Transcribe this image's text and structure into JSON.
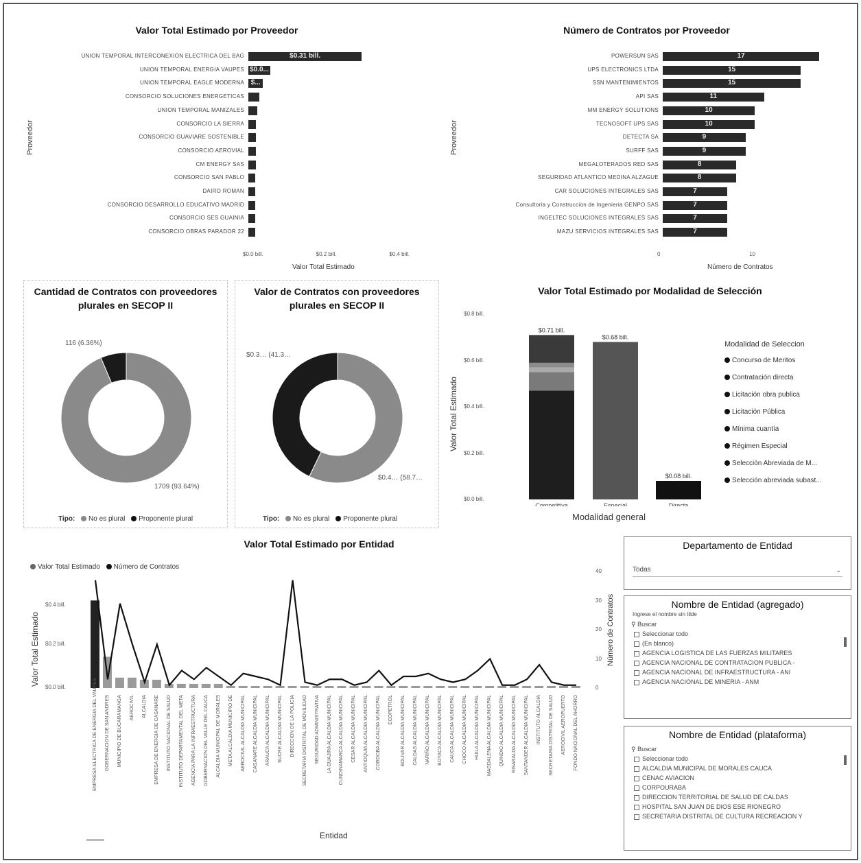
{
  "colors": {
    "bar": "#2a2a2a",
    "mid": "#6a6a6a",
    "light": "#9a9a9a",
    "text": "#222222"
  },
  "top_left": {
    "title": "Valor Total Estimado por Proveedor",
    "ylabel": "Proveedor",
    "xlabel": "Valor Total Estimado",
    "ticks": [
      "$0.0 bill.",
      "$0.2 bill.",
      "$0.4 bill."
    ]
  },
  "top_right": {
    "title": "Número de Contratos por Proveedor",
    "ylabel": "Proveedor",
    "xlabel": "Número de Contratos",
    "ticks": [
      "0",
      "10"
    ]
  },
  "donut1": {
    "title_line1": "Cantidad de Contratos con proveedores",
    "title_line2": "plurales en SECOP II",
    "label_small": "116 (6.36%)",
    "label_big": "1709 (93.64%)",
    "legend_title": "Tipo:",
    "legend_items": [
      "No es plural",
      "Proponente plural"
    ]
  },
  "donut2": {
    "title_line1": "Valor de Contratos con proveedores",
    "title_line2": "plurales en SECOP II",
    "label_left": "$0.3… (41.3…",
    "label_right": "$0.4… (58.7…",
    "legend_title": "Tipo:",
    "legend_items": [
      "No es plural",
      "Proponente plural"
    ]
  },
  "modalidad": {
    "title": "Valor Total Estimado por Modalidad de Selección",
    "ylabel": "Valor Total Estimado",
    "xlabel": "Modalidad general",
    "yticks": [
      "$0.8 bill.",
      "$0.6 bill.",
      "$0.4 bill.",
      "$0.2 bill.",
      "$0.0 bill."
    ],
    "legend_title": "Modalidad de Seleccion",
    "legend_items": [
      "Concurso de Meritos",
      "Contratación directa",
      "Licitación obra publica",
      "Licitación Pública",
      "Mínima cuantía",
      "Régimen Especial",
      "Selección Abreviada de M...",
      "Selección abreviada subast..."
    ]
  },
  "entidad": {
    "title": "Valor Total Estimado por Entidad",
    "legend": [
      "Valor Total Estimado",
      "Número de Contratos"
    ],
    "ylabel": "Valor Total Estimado",
    "y2label": "Número de Contratos",
    "xlabel": "Entidad",
    "yticks": [
      "$0.4 bill.",
      "$0.2 bill.",
      "$0.0 bill."
    ],
    "y2ticks": [
      "40",
      "30",
      "20",
      "10",
      "0"
    ]
  },
  "slicer_depto": {
    "title": "Departamento de Entidad",
    "value": "Todas"
  },
  "slicer_nombre_agr": {
    "title": "Nombre de Entidad (agregado)",
    "hint": "Ingrese el nombre sin tilde",
    "search": "Buscar",
    "items": [
      "Seleccionar todo",
      "(En blanco)",
      "AGENCIA LOGISTICA DE LAS FUERZAS MILITARES",
      "AGENCIA NACIONAL DE CONTRATACION PUBLICA -",
      "AGENCIA NACIONAL DE INFRAESTRUCTURA - ANI",
      "AGENCIA NACIONAL DE MINERIA - ANM"
    ]
  },
  "slicer_nombre_plat": {
    "title": "Nombre de Entidad (plataforma)",
    "search": "Buscar",
    "items": [
      "Seleccionar todo",
      "ALCALDIA MUNICIPAL DE MORALES CAUCA",
      "CENAC AVIACION",
      "CORPOURABA",
      "DIRECCION TERRITORIAL DE SALUD DE CALDAS",
      "HOSPITAL SAN JUAN DE DIOS ESE RIONEGRO",
      "SECRETARIA DISTRITAL DE CULTURA RECREACION Y"
    ]
  },
  "chart_data": [
    {
      "type": "bar",
      "title": "Valor Total Estimado por Proveedor",
      "xlabel": "Valor Total Estimado",
      "ylabel": "Proveedor",
      "categories": [
        "UNION TEMPORAL INTERCONEXION ELECTRICA DEL BAG",
        "UNION TEMPORAL ENERGIA VAUPES",
        "UNION TEMPORAL EAGLE MODERNA",
        "CONSORCIO SOLUCIONES ENERGETICAS",
        "UNION TEMPORAL MANIZALES",
        "CONSORCIO LA SIERRA",
        "CONSORCIO GUAVIARE SOSTENIBLE",
        "CONSORCIO AEROVIAL",
        "CM ENERGY SAS",
        "CONSORCIO SAN PABLO",
        "DAIRO ROMAN",
        "CONSORCIO DESARROLLO EDUCATIVO MADRID",
        "CONSORCIO SES GUAINIA",
        "CONSORCIO OBRAS PARADOR 22"
      ],
      "values": [
        0.31,
        0.06,
        0.04,
        0.03,
        0.025,
        0.02,
        0.02,
        0.02,
        0.02,
        0.018,
        0.018,
        0.017,
        0.017,
        0.017
      ],
      "value_labels": [
        "$0.31 bill.",
        "$0.0...",
        "$...",
        "",
        "",
        "",
        "",
        "",
        "",
        "",
        "",
        "",
        "",
        ""
      ],
      "xlim": [
        0,
        0.45
      ]
    },
    {
      "type": "bar",
      "title": "Número de Contratos por Proveedor",
      "xlabel": "Número de Contratos",
      "ylabel": "Proveedor",
      "categories": [
        "POWERSUN SAS",
        "UPS ELECTRONICS LTDA",
        "SSN MANTENIMIENTOS",
        "API SAS",
        "MM ENERGY SOLUTIONS",
        "TECNOSOFT UPS SAS",
        "DETECTA SA",
        "SURFF SAS",
        "MEGALOTERADOS RED SAS",
        "SEGURIDAD ATLANTICO MEDINA ALZAGUE",
        "CAR SOLUCIONES INTEGRALES SAS",
        "Consultoria y Construccion de Ingenieria GENPO SAS",
        "INGELTEC SOLUCIONES INTEGRALES SAS",
        "MAZU SERVICIOS INTEGRALES SAS"
      ],
      "values": [
        17,
        15,
        15,
        11,
        10,
        10,
        9,
        9,
        8,
        8,
        7,
        7,
        7,
        7
      ],
      "xlim": [
        0,
        19
      ]
    },
    {
      "type": "pie",
      "title": "Cantidad de Contratos con proveedores plurales en SECOP II",
      "categories": [
        "No es plural",
        "Proponente plural"
      ],
      "values": [
        1709,
        116
      ],
      "percent": [
        93.64,
        6.36
      ]
    },
    {
      "type": "pie",
      "title": "Valor de Contratos con proveedores plurales en SECOP II",
      "categories": [
        "No es plural",
        "Proponente plural"
      ],
      "values": [
        0.4,
        0.3
      ],
      "percent": [
        58.7,
        41.3
      ]
    },
    {
      "type": "bar",
      "title": "Valor Total Estimado por Modalidad de Selección",
      "xlabel": "Modalidad general",
      "ylabel": "Valor Total Estimado",
      "categories": [
        "Competitiva",
        "Especial",
        "Directa"
      ],
      "totals": [
        0.71,
        0.68,
        0.08
      ],
      "total_labels": [
        "$0.71 bill.",
        "$0.68 bill.",
        "$0.08 bill."
      ],
      "series": [
        {
          "name": "Licitación Pública",
          "values": [
            0.47,
            0,
            0
          ]
        },
        {
          "name": "Licitación obra publica",
          "values": [
            0.08,
            0,
            0
          ]
        },
        {
          "name": "Mínima cuantía",
          "values": [
            0.02,
            0,
            0
          ]
        },
        {
          "name": "Selección Abreviada de M...",
          "values": [
            0.02,
            0,
            0
          ]
        },
        {
          "name": "Concurso de Meritos",
          "values": [
            0.12,
            0,
            0
          ]
        },
        {
          "name": "Régimen Especial",
          "values": [
            0,
            0.68,
            0
          ]
        },
        {
          "name": "Contratación directa",
          "values": [
            0,
            0,
            0.08
          ]
        }
      ],
      "ylim": [
        0,
        0.8
      ]
    },
    {
      "type": "bar",
      "title": "Valor Total Estimado por Entidad",
      "xlabel": "Entidad",
      "ylabel": "Valor Total Estimado",
      "y2label": "Número de Contratos",
      "categories": [
        "EMPRESA ELECTRICA DE ENERGIA DEL VAUPES",
        "GOBERNACION DE SAN ANDRES",
        "MUNICIPIO DE BUCARAMANGA",
        "AEROCIVIL",
        "ALCALDIA",
        "EMPRESA DE ENERGIA DE CASANARE",
        "INSTITUTO NACIONAL DE SALUD",
        "INSTITUTO DEPARTAMENTAL DEL META",
        "AGENCIA PARA LA INFRAESTRUCTURA",
        "GOBERNACION DEL VALLE DEL CAUCA",
        "ALCALDIA MUNICIPAL DE MORALES",
        "META ALCALDIA MUNICIPIO DE",
        "AEROCIVIL ALCALDIA MUNICIPAL",
        "CASANARE ALCALDIA MUNICIPAL",
        "ARAUCA ALCALDIA MUNICIPAL",
        "SUCRE ALCALDIA MUNICIPAL",
        "DIRECCION DE LA POLICIA",
        "SECRETARIA DISTRITAL DE MOVILIDAD",
        "SEGURIDAD ADMINISTRATIVA",
        "LA GUAJIRA ALCALDIA MUNICIPAL",
        "CUNDINAMARCA ALCALDIA MUNICIPAL",
        "CESAR ALCALDIA MUNICIPAL",
        "ANTIOQUIA ALCALDIA MUNICIPAL",
        "CORDOBA ALCALDIA MUNICIPAL",
        "ECOPETROL",
        "BOLIVAR ALCALDIA MUNICIPAL",
        "CALDAS ALCALDIA MUNICIPAL",
        "NARIÑO ALCALDIA MUNICIPAL",
        "BOYACA ALCALDIA MUNICIPAL",
        "CAUCA ALCALDIA MUNICIPAL",
        "CHOCO ALCALDIA MUNICIPAL",
        "HUILA ALCALDIA MUNICIPAL",
        "MAGDALENA ALCALDIA MUNICIPAL",
        "QUINDIO ALCALDIA MUNICIPAL",
        "RISARALDA ALCALDIA MUNICIPAL",
        "SANTANDER ALCALDIA MUNICIPAL",
        "INSTITUTO ALCALDIA",
        "SECRETARIA DISTRITAL DE SALUD",
        "AEROCIVIL AEROPUERTO",
        "FONDO NACIONAL DEL AHORRO"
      ],
      "series": [
        {
          "name": "Valor Total Estimado",
          "values": [
            0.42,
            0.15,
            0.05,
            0.05,
            0.04,
            0.04,
            0.02,
            0.02,
            0.02,
            0.02,
            0.02,
            0.01,
            0.01,
            0.01,
            0.01,
            0.01,
            0.01,
            0.01,
            0.01,
            0.01,
            0.01,
            0.01,
            0.01,
            0.01,
            0.01,
            0.01,
            0.01,
            0.01,
            0.01,
            0.01,
            0.01,
            0.01,
            0.01,
            0.01,
            0.01,
            0.01,
            0.01,
            0.01,
            0.01,
            0.01
          ]
        },
        {
          "name": "Número de Contratos",
          "values": [
            37,
            3,
            29,
            15,
            2,
            15,
            1,
            6,
            3,
            7,
            4,
            1,
            5,
            4,
            3,
            1,
            37,
            2,
            1,
            3,
            3,
            1,
            2,
            6,
            1,
            4,
            4,
            5,
            3,
            2,
            3,
            6,
            10,
            1,
            1,
            3,
            8,
            2,
            1,
            1
          ]
        }
      ],
      "ylim": [
        0,
        0.5
      ],
      "y2lim": [
        0,
        40
      ]
    }
  ]
}
